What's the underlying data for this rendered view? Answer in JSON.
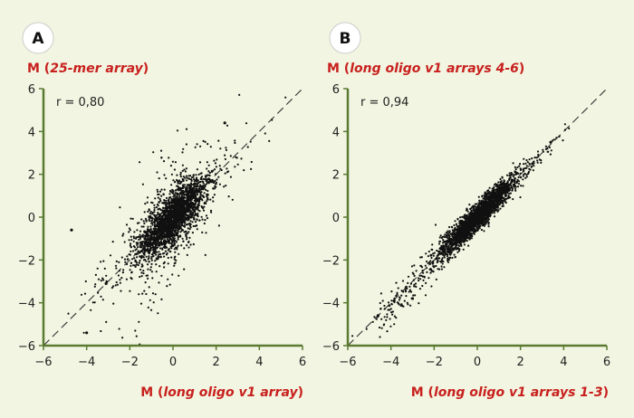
{
  "chart_data": [
    {
      "type": "scatter",
      "panel_label": "A",
      "ylabel_prefix": "M (",
      "ylabel_italic": "25-mer array",
      "ylabel_suffix": ")",
      "xlabel_prefix": "M (",
      "xlabel_italic": "long oligo v1 array",
      "xlabel_suffix": ")",
      "annotation": "r = 0,80",
      "r": 0.8,
      "xlim": [
        -6,
        6
      ],
      "ylim": [
        -6,
        6
      ],
      "xticks": [
        -6,
        -4,
        -2,
        0,
        2,
        4,
        6
      ],
      "yticks": [
        -6,
        -4,
        -2,
        0,
        2,
        4,
        6
      ],
      "diagonal": "y = x (dashed)",
      "points_description": "approx. 3000 points, dense cloud centred near (0, 0), spread about 1.5 units",
      "highlighted_points": [
        [
          2.4,
          4.4
        ],
        [
          -4.7,
          -0.6
        ],
        [
          -3.1,
          -3.1
        ],
        [
          -4.0,
          -5.4
        ]
      ]
    },
    {
      "type": "scatter",
      "panel_label": "B",
      "ylabel_prefix": "M (",
      "ylabel_italic": "long oligo v1 arrays 4-6",
      "ylabel_suffix": ")",
      "xlabel_prefix": "M (",
      "xlabel_italic": "long oligo v1 arrays 1-3",
      "xlabel_suffix": ")",
      "annotation": "r = 0,94",
      "r": 0.94,
      "xlim": [
        -6,
        6
      ],
      "ylim": [
        -6,
        6
      ],
      "xticks": [
        -6,
        -4,
        -2,
        0,
        2,
        4,
        6
      ],
      "yticks": [
        -6,
        -4,
        -2,
        0,
        2,
        4,
        6
      ],
      "diagonal": "y = x (dashed)",
      "points_description": "approx. 3000 points, tight cloud along the diagonal from (-4.5, -5) to (3.5, 3.5)",
      "highlighted_points": [
        [
          3.4,
          3.5
        ],
        [
          -4.6,
          -4.6
        ],
        [
          -3.0,
          -3.8
        ]
      ]
    }
  ],
  "colors": {
    "background": "#f2f5e1",
    "axis": "#5a7a32",
    "label_red": "#c8201e",
    "points": "#111111",
    "diagonal": "#333333"
  }
}
